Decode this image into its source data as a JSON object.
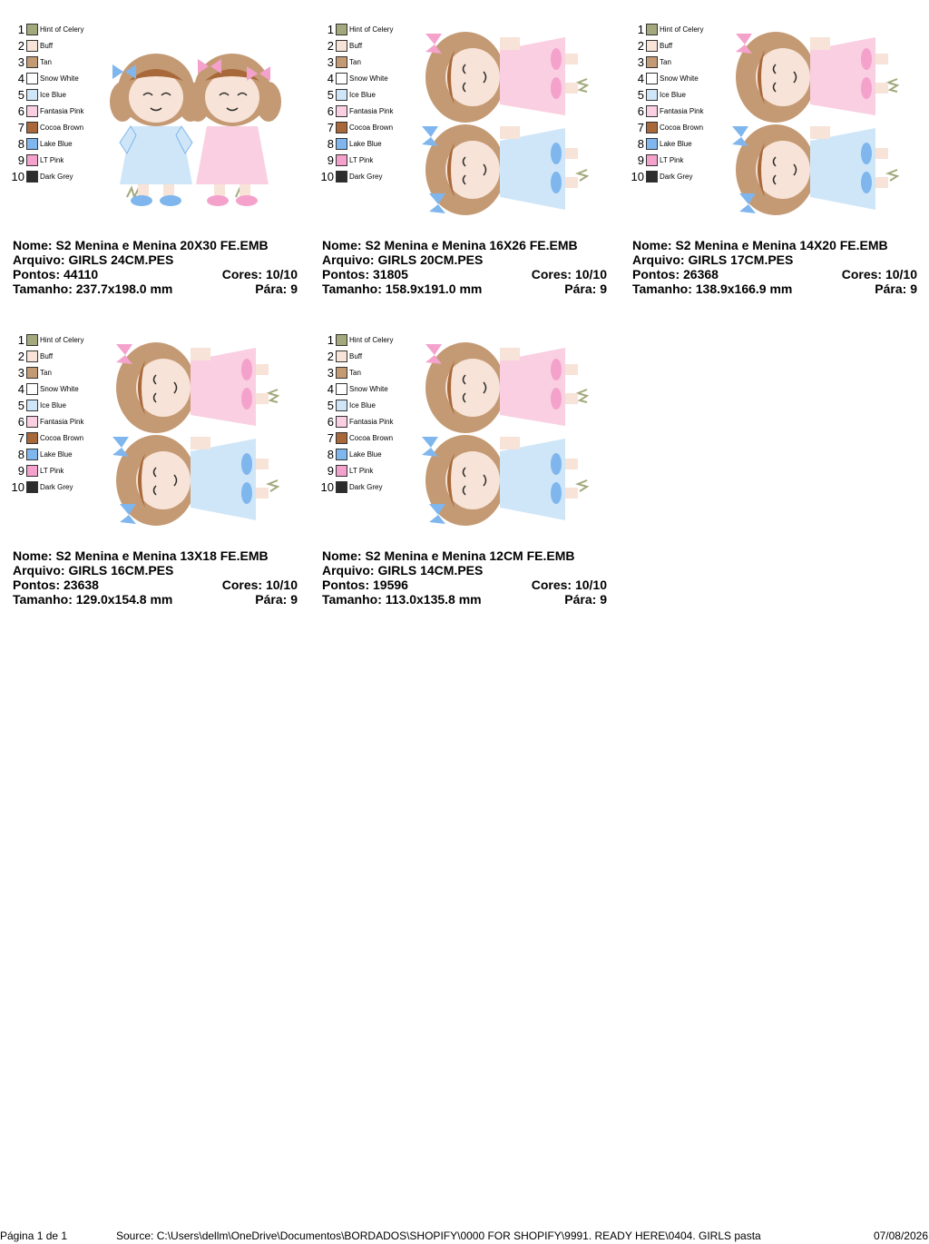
{
  "colors": [
    {
      "num": "1",
      "name": "Hint of Celery",
      "hex": "#a3a97c"
    },
    {
      "num": "2",
      "name": "Buff",
      "hex": "#f7e3d7"
    },
    {
      "num": "3",
      "name": "Tan",
      "hex": "#c49a74"
    },
    {
      "num": "4",
      "name": "Snow White",
      "hex": "#ffffff"
    },
    {
      "num": "5",
      "name": "Ice Blue",
      "hex": "#cfe6f8"
    },
    {
      "num": "6",
      "name": "Fantasia Pink",
      "hex": "#f9cfe1"
    },
    {
      "num": "7",
      "name": "Cocoa Brown",
      "hex": "#a8683a"
    },
    {
      "num": "8",
      "name": "Lake Blue",
      "hex": "#7fb6ee"
    },
    {
      "num": "9",
      "name": "LT Pink",
      "hex": "#f4a2cc"
    },
    {
      "num": "10",
      "name": "Dark Grey",
      "hex": "#2d2d2d"
    }
  ],
  "designs": [
    {
      "nome": "Nome: S2 Menina e Menina 20X30 FE.EMB",
      "arquivo": "Arquivo: GIRLS 24CM.PES",
      "pontos": "Pontos: 44110",
      "cores": "Cores: 10/10",
      "tamanho": "Tamanho: 237.7x198.0 mm",
      "para": "Pára: 9",
      "art": "standing-girls"
    },
    {
      "nome": "Nome: S2 Menina e Menina 16X26 FE.EMB",
      "arquivo": "Arquivo: GIRLS 20CM.PES",
      "pontos": "Pontos: 31805",
      "cores": "Cores: 10/10",
      "tamanho": "Tamanho: 158.9x191.0 mm",
      "para": "Pára: 9",
      "art": "rotated-girls"
    },
    {
      "nome": "Nome: S2 Menina e Menina 14X20 FE.EMB",
      "arquivo": "Arquivo: GIRLS 17CM.PES",
      "pontos": "Pontos: 26368",
      "cores": "Cores: 10/10",
      "tamanho": "Tamanho: 138.9x166.9 mm",
      "para": "Pára: 9",
      "art": "rotated-girls"
    },
    {
      "nome": "Nome: S2 Menina e Menina 13X18 FE.EMB",
      "arquivo": "Arquivo: GIRLS 16CM.PES",
      "pontos": "Pontos: 23638",
      "cores": "Cores: 10/10",
      "tamanho": "Tamanho: 129.0x154.8 mm",
      "para": "Pára: 9",
      "art": "rotated-girls"
    },
    {
      "nome": "Nome: S2 Menina e Menina 12CM FE.EMB",
      "arquivo": "Arquivo: GIRLS 14CM.PES",
      "pontos": "Pontos: 19596",
      "cores": "Cores: 10/10",
      "tamanho": "Tamanho: 113.0x135.8 mm",
      "para": "Pára: 9",
      "art": "rotated-girls"
    }
  ],
  "footer": {
    "page": "Página 1 de 1",
    "source": "Source: C:\\Users\\dellm\\OneDrive\\Documentos\\BORDADOS\\SHOPIFY\\0000 FOR SHOPIFY\\9991. READY HERE\\0404. GIRLS pasta",
    "date": "07/08/2026"
  }
}
